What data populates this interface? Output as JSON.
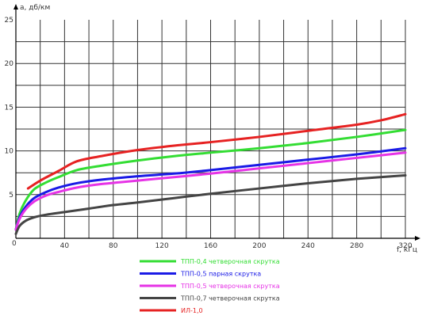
{
  "chart_data": {
    "type": "line",
    "ylabel": "a, дб/км",
    "xlabel": "f, кГц",
    "xlim": [
      0,
      320
    ],
    "ylim": [
      0,
      25
    ],
    "xticks": [
      0,
      40,
      80,
      120,
      160,
      200,
      240,
      280,
      320
    ],
    "yticks": [
      5,
      10,
      15,
      20,
      25
    ],
    "origin_label": "0",
    "grid": true,
    "legend_position": "bottom",
    "series": [
      {
        "name": "ТПП-0,4 четверочная скрутка",
        "color": "#33dd33",
        "x": [
          0,
          3,
          8,
          15,
          25,
          35,
          50,
          70,
          100,
          130,
          160,
          200,
          240,
          280,
          320
        ],
        "y": [
          1.0,
          2.8,
          4.3,
          5.6,
          6.4,
          7.0,
          7.8,
          8.3,
          8.9,
          9.4,
          9.8,
          10.3,
          10.9,
          11.6,
          12.4
        ]
      },
      {
        "name": "ТПП-0,5 парная скрутка",
        "color": "#1a1ae6",
        "x": [
          0,
          3,
          8,
          15,
          25,
          35,
          50,
          70,
          100,
          130,
          160,
          200,
          240,
          280,
          320
        ],
        "y": [
          1.0,
          2.4,
          3.6,
          4.6,
          5.3,
          5.8,
          6.3,
          6.7,
          7.1,
          7.4,
          7.8,
          8.4,
          9.0,
          9.6,
          10.3
        ]
      },
      {
        "name": "ТПП-0,5 четверочная скрутка",
        "color": "#e633e6",
        "x": [
          0,
          3,
          8,
          15,
          25,
          35,
          50,
          70,
          100,
          130,
          160,
          200,
          240,
          280,
          320
        ],
        "y": [
          1.0,
          2.2,
          3.3,
          4.2,
          4.9,
          5.3,
          5.8,
          6.2,
          6.6,
          7.0,
          7.4,
          8.0,
          8.6,
          9.2,
          9.8
        ]
      },
      {
        "name": "ТПП-0,7 четверочная скрутка",
        "color": "#444444",
        "x": [
          0,
          3,
          8,
          15,
          25,
          40,
          60,
          80,
          100,
          130,
          160,
          200,
          240,
          280,
          320
        ],
        "y": [
          0.5,
          1.4,
          2.0,
          2.4,
          2.7,
          3.0,
          3.4,
          3.8,
          4.1,
          4.6,
          5.1,
          5.7,
          6.3,
          6.8,
          7.2
        ]
      },
      {
        "name": "ИЛ-1,0",
        "color": "#e62222",
        "x": [
          10,
          20,
          35,
          50,
          70,
          100,
          130,
          160,
          200,
          240,
          280,
          300,
          320
        ],
        "y": [
          5.7,
          6.6,
          7.7,
          8.8,
          9.4,
          10.1,
          10.6,
          11.0,
          11.6,
          12.3,
          13.0,
          13.5,
          14.2
        ]
      }
    ]
  }
}
